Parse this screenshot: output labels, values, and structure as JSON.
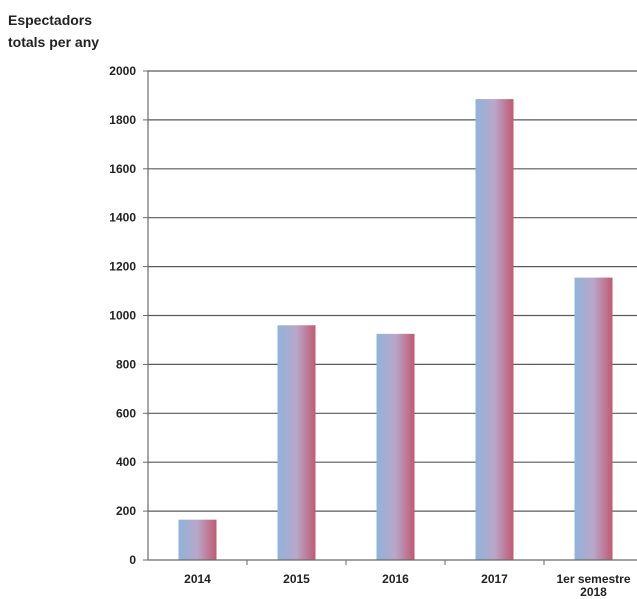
{
  "chart_data": {
    "type": "bar",
    "ylabel_lines": [
      "Espectadors",
      "totals per any"
    ],
    "xlabel": "",
    "categories": [
      {
        "lines": [
          "2014"
        ]
      },
      {
        "lines": [
          "2015"
        ]
      },
      {
        "lines": [
          "2016"
        ]
      },
      {
        "lines": [
          "2017"
        ]
      },
      {
        "lines": [
          "1er semestre",
          "2018"
        ]
      }
    ],
    "values": [
      165,
      960,
      925,
      1885,
      1155
    ],
    "ylim": [
      0,
      2000
    ],
    "yticks": [
      0,
      200,
      400,
      600,
      800,
      1000,
      1200,
      1400,
      1600,
      1800,
      2000
    ],
    "grid": true,
    "legend": "none",
    "colors": {
      "bar_left": "#8fb4dc",
      "bar_mid": "#b9a7c8",
      "bar_right": "#c05a72",
      "grid": "#5a5a5a",
      "axis": "#6a6a6a",
      "text": "#222222"
    }
  }
}
